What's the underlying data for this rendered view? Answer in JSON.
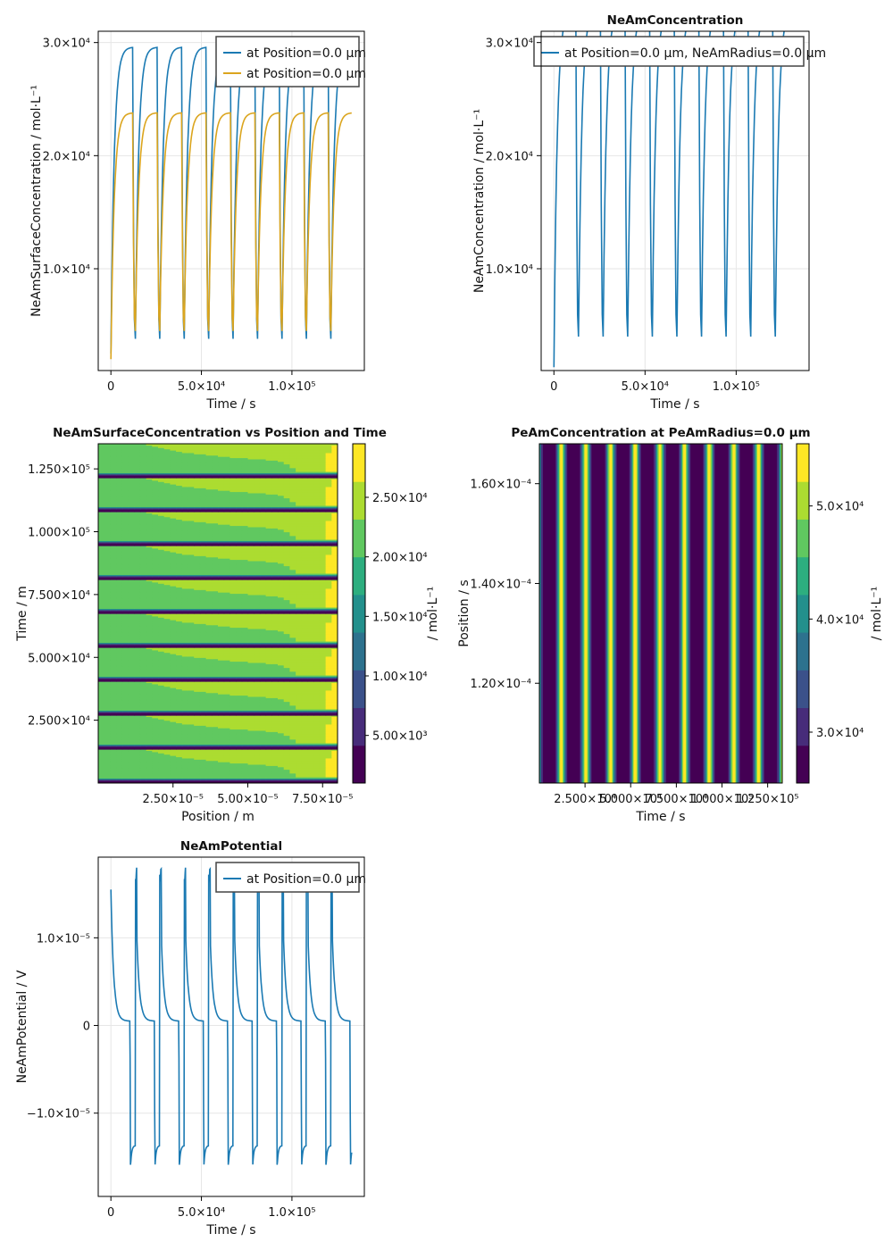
{
  "colors": {
    "blue": "#1b7ab3",
    "orange": "#dba51e",
    "grid": "#e6e6e6",
    "frame": "#000000"
  },
  "viridis": [
    "#440154",
    "#482878",
    "#3e4989",
    "#31688e",
    "#26828e",
    "#1f9e89",
    "#35b779",
    "#6ece58",
    "#b5de2b",
    "#fde725"
  ],
  "chart_data": [
    {
      "id": "p1",
      "type": "line",
      "title": "",
      "xlabel": "Time  /  s",
      "ylabel": "NeAmSurfaceConcentration  / mol·L⁻¹",
      "xlim": [
        -7000,
        140000
      ],
      "ylim": [
        1000,
        31000
      ],
      "xticks": [
        {
          "v": 0,
          "t": "0"
        },
        {
          "v": 50000,
          "t": "5.0×10⁴"
        },
        {
          "v": 100000,
          "t": "1.0×10⁵"
        }
      ],
      "yticks": [
        {
          "v": 10000,
          "t": "1.0×10⁴"
        },
        {
          "v": 20000,
          "t": "2.0×10⁴"
        },
        {
          "v": 30000,
          "t": "3.0×10⁴"
        }
      ],
      "legend": "top-right",
      "series": [
        {
          "name": "at Position=0.0 µm",
          "color": "blue",
          "cycle": {
            "period": 13500,
            "t0": 0,
            "n": 10,
            "tend": 133000,
            "charge_frac": 0.093,
            "max": 29600,
            "min": 3800,
            "start": 2500,
            "rise_tau": 1800,
            "fall_tau": 280,
            "step": 500
          }
        },
        {
          "name": "at Position=0.0 µm",
          "color": "orange",
          "cycle": {
            "period": 13500,
            "t0": 0,
            "n": 10,
            "tend": 133000,
            "charge_frac": 0.093,
            "max": 23800,
            "min": 4500,
            "start": 2000,
            "rise_tau": 1800,
            "fall_tau": 280,
            "step": 500
          }
        }
      ]
    },
    {
      "id": "p2",
      "type": "line",
      "title": "NeAmConcentration",
      "xlabel": "Time  /  s",
      "ylabel": "NeAmConcentration  / mol·L⁻¹",
      "xlim": [
        -7000,
        140000
      ],
      "ylim": [
        1000,
        31000
      ],
      "xticks": [
        {
          "v": 0,
          "t": "0"
        },
        {
          "v": 50000,
          "t": "5.0×10⁴"
        },
        {
          "v": 100000,
          "t": "1.0×10⁵"
        }
      ],
      "yticks": [
        {
          "v": 10000,
          "t": "1.0×10⁴"
        },
        {
          "v": 20000,
          "t": "2.0×10⁴"
        },
        {
          "v": 30000,
          "t": "3.0×10⁴"
        }
      ],
      "legend": "top",
      "series": [
        {
          "name": "at Position=0.0 µm, NeAmRadius=0.0 µm",
          "color": "blue",
          "cycle": {
            "period": 13500,
            "t0": 0,
            "n": 10,
            "tend": 133000,
            "charge_frac": 0.093,
            "max": 33000,
            "min": 4000,
            "start": 1300,
            "rise_tau": 1800,
            "fall_tau": 280,
            "step": 500
          }
        }
      ]
    },
    {
      "id": "p3",
      "type": "heatmap",
      "title": "NeAmSurfaceConcentration vs Position and Time",
      "xlabel": "Position  /  m",
      "ylabel": "Time  /  m",
      "xlim": [
        0,
        8e-05
      ],
      "ylim": [
        0,
        135000
      ],
      "xticks": [
        {
          "v": 2.5e-05,
          "t": "2.50×10⁻⁵"
        },
        {
          "v": 5e-05,
          "t": "5.00×10⁻⁵"
        },
        {
          "v": 7.5e-05,
          "t": "7.50×10⁻⁵"
        }
      ],
      "yticks": [
        {
          "v": 25000,
          "t": "2.500×10⁴"
        },
        {
          "v": 50000,
          "t": "5.000×10⁴"
        },
        {
          "v": 75000,
          "t": "7.500×10⁴"
        },
        {
          "v": 100000,
          "t": "1.000×10⁵"
        },
        {
          "v": 125000,
          "t": "1.250×10⁵"
        }
      ],
      "colorbar": {
        "label": "/ mol·L⁻¹",
        "range": [
          1000,
          29500
        ],
        "ticks": [
          {
            "v": 5000,
            "t": "5.00×10³"
          },
          {
            "v": 10000,
            "t": "1.00×10⁴"
          },
          {
            "v": 15000,
            "t": "1.50×10⁴"
          },
          {
            "v": 20000,
            "t": "2.00×10⁴"
          },
          {
            "v": 25000,
            "t": "2.50×10⁴"
          }
        ],
        "levels": 9
      },
      "field": {
        "period": 13500,
        "charge_frac": 0.095,
        "min": 1500,
        "max": 29000
      }
    },
    {
      "id": "p4",
      "type": "heatmap",
      "title": "PeAmConcentration at PeAmRadius=0.0 µm",
      "xlabel": "Time  /  s",
      "ylabel": "Position  /  s",
      "xlim": [
        0,
        133000
      ],
      "ylim": [
        0.0001,
        0.000168
      ],
      "xticks": [
        {
          "v": 25000,
          "t": "2.500×10⁴"
        },
        {
          "v": 50000,
          "t": "5.000×10⁴"
        },
        {
          "v": 75000,
          "t": "7.500×10⁴"
        },
        {
          "v": 100000,
          "t": "1.000×10⁵"
        },
        {
          "v": 125000,
          "t": "1.250×10⁵"
        }
      ],
      "yticks": [
        {
          "v": 0.00012,
          "t": "1.20×10⁻⁴"
        },
        {
          "v": 0.00014,
          "t": "1.40×10⁻⁴"
        },
        {
          "v": 0.00016,
          "t": "1.60×10⁻⁴"
        }
      ],
      "colorbar": {
        "label": "/ mol·L⁻¹",
        "range": [
          25500,
          55500
        ],
        "ticks": [
          {
            "v": 30000,
            "t": "3.0×10⁴"
          },
          {
            "v": 40000,
            "t": "4.0×10⁴"
          },
          {
            "v": 50000,
            "t": "5.0×10⁴"
          }
        ],
        "levels": 9
      },
      "field": {
        "period": 13500,
        "first": 12000,
        "min": 26000,
        "max": 55000,
        "halfwidth": 1500
      }
    },
    {
      "id": "p5",
      "type": "line",
      "title": "NeAmPotential",
      "xlabel": "Time  /  s",
      "ylabel": "NeAmPotential  / V",
      "xlim": [
        -7000,
        140000
      ],
      "ylim": [
        -1.95e-05,
        1.92e-05
      ],
      "xticks": [
        {
          "v": 0,
          "t": "0"
        },
        {
          "v": 50000,
          "t": "5.0×10⁴"
        },
        {
          "v": 100000,
          "t": "1.0×10⁵"
        }
      ],
      "yticks": [
        {
          "v": -1e-05,
          "t": "−1.0×10⁻⁵"
        },
        {
          "v": 0,
          "t": "0"
        },
        {
          "v": 1e-05,
          "t": "1.0×10⁻⁵"
        }
      ],
      "legend": "top-right",
      "series": [
        {
          "name": "at Position=0.0 µm",
          "color": "blue",
          "potential": {
            "period": 13500,
            "n": 10,
            "tend": 133000,
            "peak": 1.72e-05,
            "start": 1.55e-05,
            "dip": -1.77e-05,
            "rest": 5e-07,
            "tau": 1500
          }
        }
      ]
    }
  ]
}
